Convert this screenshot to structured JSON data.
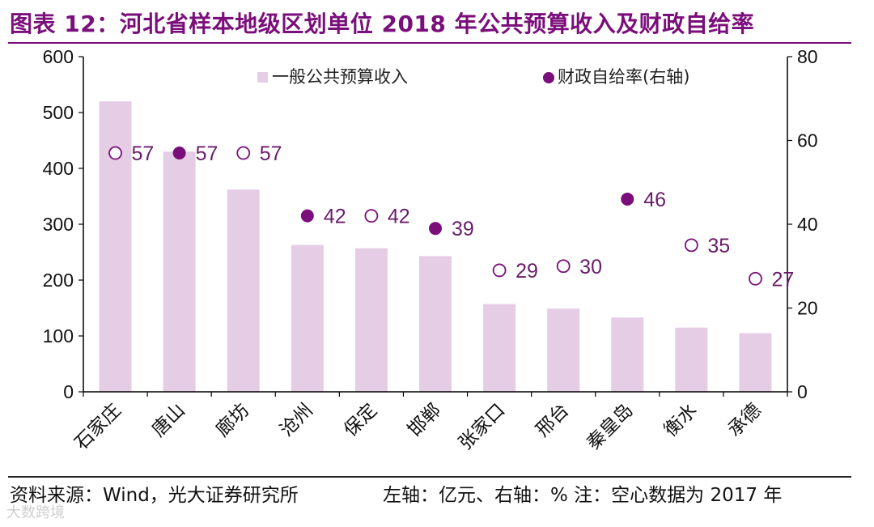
{
  "title": "图表 12：河北省样本地级区划单位 2018 年公共预算收入及财政自给率",
  "source": "资料来源：Wind，光大证券研究所",
  "note": "左轴：亿元、右轴：%   注：空心数据为 2017 年",
  "watermark": "大数跨境",
  "colors": {
    "bar": "#E6CDE6",
    "dot": "#7A0E7A",
    "title": "#7A0E7A"
  },
  "chart_data": {
    "type": "bar+scatter",
    "categories": [
      "石家庄",
      "唐山",
      "廊坊",
      "沧州",
      "保定",
      "邯郸",
      "张家口",
      "邢台",
      "秦皇岛",
      "衡水",
      "承德"
    ],
    "series": [
      {
        "name": "一般公共预算收入",
        "axis": "left",
        "type": "bar",
        "values": [
          520,
          430,
          362,
          263,
          257,
          243,
          157,
          149,
          133,
          115,
          105
        ]
      },
      {
        "name": "财政自给率(右轴)",
        "axis": "right",
        "type": "scatter",
        "values": [
          57,
          57,
          57,
          42,
          42,
          39,
          29,
          30,
          46,
          35,
          27
        ],
        "hollow": [
          true,
          false,
          true,
          false,
          true,
          false,
          true,
          true,
          false,
          true,
          true
        ]
      }
    ],
    "y_left": {
      "min": 0,
      "max": 600,
      "ticks": [
        0,
        100,
        200,
        300,
        400,
        500,
        600
      ]
    },
    "y_right": {
      "min": 0,
      "max": 80,
      "ticks": [
        0,
        20,
        40,
        60,
        80
      ]
    },
    "legend": [
      "一般公共预算收入",
      "财政自给率(右轴)"
    ],
    "legend_position": "top-center"
  }
}
